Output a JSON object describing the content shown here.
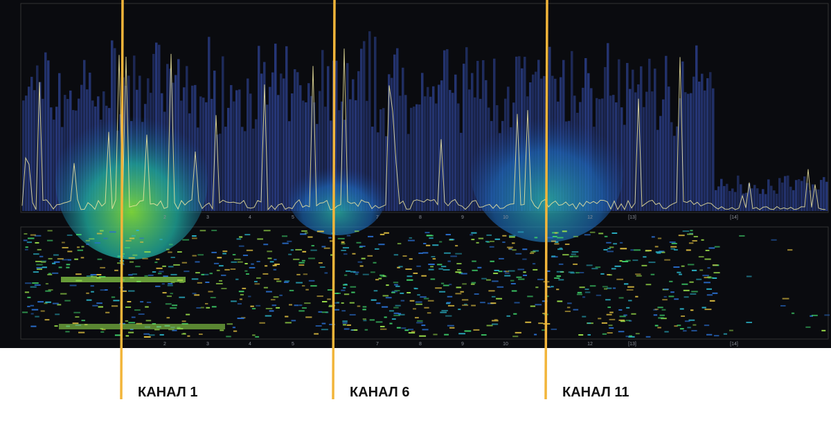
{
  "x_axis_labels": [
    "2",
    "3",
    "4",
    "5",
    "7",
    "8",
    "9",
    "10",
    "12",
    "[13]",
    "[14]"
  ],
  "channels": [
    {
      "label": "КАНАЛ 1"
    },
    {
      "label": "КАНАЛ 6"
    },
    {
      "label": "КАНАЛ 11"
    }
  ]
}
